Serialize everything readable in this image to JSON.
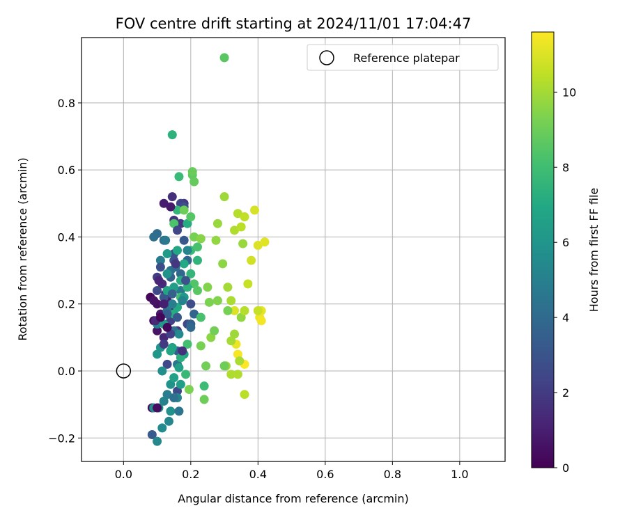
{
  "chart_data": {
    "type": "scatter",
    "title": "FOV centre drift starting at 2024/11/01 17:04:47",
    "xlabel": "Angular distance from reference (arcmin)",
    "ylabel": "Rotation from reference (arcmin)",
    "xlim": [
      -0.125,
      1.135
    ],
    "ylim": [
      -0.27,
      0.995
    ],
    "xticks": [
      0.0,
      0.2,
      0.4,
      0.6,
      0.8,
      1.0
    ],
    "xtick_labels": [
      "0.0",
      "0.2",
      "0.4",
      "0.6",
      "0.8",
      "1.0"
    ],
    "yticks": [
      -0.2,
      0.0,
      0.2,
      0.4,
      0.6,
      0.8
    ],
    "ytick_labels": [
      "−0.2",
      "0.0",
      "0.2",
      "0.4",
      "0.6",
      "0.8"
    ],
    "grid": true,
    "legend": {
      "position": "top-right",
      "entries": [
        {
          "label": "Reference platepar",
          "marker": "open-circle",
          "color": "#000000"
        }
      ]
    },
    "reference_point": {
      "x": 0.0,
      "y": 0.0
    },
    "colormap": "viridis",
    "colorbar": {
      "label": "Hours from first FF file",
      "range": [
        0,
        11.6
      ],
      "ticks": [
        0,
        2,
        4,
        6,
        8,
        10
      ],
      "tick_labels": [
        "0",
        "2",
        "4",
        "6",
        "8",
        "10"
      ]
    },
    "points": [
      {
        "x": 0.08,
        "y": 0.22,
        "c": 0.2
      },
      {
        "x": 0.09,
        "y": 0.15,
        "c": 0.3
      },
      {
        "x": 0.1,
        "y": 0.2,
        "c": 0.5
      },
      {
        "x": 0.085,
        "y": -0.11,
        "c": 0.4
      },
      {
        "x": 0.1,
        "y": 0.12,
        "c": 0.6
      },
      {
        "x": 0.11,
        "y": 0.17,
        "c": 0.8
      },
      {
        "x": 0.12,
        "y": 0.5,
        "c": 0.9
      },
      {
        "x": 0.13,
        "y": 0.21,
        "c": 1.0
      },
      {
        "x": 0.125,
        "y": 0.23,
        "c": 1.1
      },
      {
        "x": 0.14,
        "y": 0.19,
        "c": 1.2
      },
      {
        "x": 0.12,
        "y": 0.1,
        "c": 1.3
      },
      {
        "x": 0.115,
        "y": 0.26,
        "c": 1.4
      },
      {
        "x": 0.145,
        "y": 0.52,
        "c": 1.6
      },
      {
        "x": 0.15,
        "y": 0.45,
        "c": 1.7
      },
      {
        "x": 0.16,
        "y": 0.12,
        "c": 1.8
      },
      {
        "x": 0.17,
        "y": 0.44,
        "c": 1.9
      },
      {
        "x": 0.18,
        "y": 0.5,
        "c": 2.0
      },
      {
        "x": 0.1,
        "y": 0.28,
        "c": 2.1
      },
      {
        "x": 0.14,
        "y": 0.15,
        "c": 2.2
      },
      {
        "x": 0.17,
        "y": 0.5,
        "c": 2.3
      },
      {
        "x": 0.19,
        "y": 0.14,
        "c": 2.4
      },
      {
        "x": 0.13,
        "y": 0.02,
        "c": 2.5
      },
      {
        "x": 0.16,
        "y": -0.06,
        "c": 2.6
      },
      {
        "x": 0.2,
        "y": 0.2,
        "c": 2.7
      },
      {
        "x": 0.18,
        "y": 0.49,
        "c": 2.8
      },
      {
        "x": 0.15,
        "y": 0.33,
        "c": 2.9
      },
      {
        "x": 0.15,
        "y": 0.35,
        "c": 3.0
      },
      {
        "x": 0.12,
        "y": 0.22,
        "c": 3.1
      },
      {
        "x": 0.18,
        "y": 0.39,
        "c": 3.2
      },
      {
        "x": 0.085,
        "y": -0.19,
        "c": 3.3
      },
      {
        "x": 0.16,
        "y": 0.06,
        "c": 3.4
      },
      {
        "x": 0.2,
        "y": 0.14,
        "c": 3.5
      },
      {
        "x": 0.14,
        "y": 0.28,
        "c": 3.6
      },
      {
        "x": 0.21,
        "y": 0.17,
        "c": 3.7
      },
      {
        "x": 0.19,
        "y": 0.33,
        "c": 3.8
      },
      {
        "x": 0.17,
        "y": 0.29,
        "c": 3.9
      },
      {
        "x": 0.1,
        "y": 0.41,
        "c": 4.0
      },
      {
        "x": 0.12,
        "y": 0.39,
        "c": 4.1
      },
      {
        "x": 0.09,
        "y": 0.4,
        "c": 4.2
      },
      {
        "x": 0.15,
        "y": 0.12,
        "c": 4.3
      },
      {
        "x": 0.14,
        "y": 0.3,
        "c": 4.4
      },
      {
        "x": 0.16,
        "y": 0.02,
        "c": 4.5
      },
      {
        "x": 0.13,
        "y": 0.18,
        "c": 4.6
      },
      {
        "x": 0.17,
        "y": 0.24,
        "c": 4.7
      },
      {
        "x": 0.11,
        "y": 0.33,
        "c": 4.8
      },
      {
        "x": 0.13,
        "y": -0.07,
        "c": 4.9
      },
      {
        "x": 0.1,
        "y": 0.14,
        "c": 5.0
      },
      {
        "x": 0.12,
        "y": -0.09,
        "c": 5.1
      },
      {
        "x": 0.16,
        "y": -0.08,
        "c": 5.2
      },
      {
        "x": 0.135,
        "y": -0.15,
        "c": 5.3
      },
      {
        "x": 0.1,
        "y": -0.21,
        "c": 5.4
      },
      {
        "x": 0.115,
        "y": -0.17,
        "c": 5.5
      },
      {
        "x": 0.09,
        "y": -0.11,
        "c": 5.6
      },
      {
        "x": 0.105,
        "y": -0.11,
        "c": 5.7
      },
      {
        "x": 0.14,
        "y": -0.12,
        "c": 5.8
      },
      {
        "x": 0.14,
        "y": -0.04,
        "c": 5.9
      },
      {
        "x": 0.11,
        "y": 0.07,
        "c": 6.0
      },
      {
        "x": 0.1,
        "y": 0.05,
        "c": 6.1
      },
      {
        "x": 0.12,
        "y": 0.14,
        "c": 6.2
      },
      {
        "x": 0.13,
        "y": 0.35,
        "c": 6.3
      },
      {
        "x": 0.15,
        "y": 0.25,
        "c": 6.4
      },
      {
        "x": 0.165,
        "y": 0.01,
        "c": 6.5
      },
      {
        "x": 0.18,
        "y": 0.05,
        "c": 6.6
      },
      {
        "x": 0.145,
        "y": 0.07,
        "c": 6.7
      },
      {
        "x": 0.13,
        "y": 0.24,
        "c": 6.8
      },
      {
        "x": 0.16,
        "y": 0.36,
        "c": 6.9
      },
      {
        "x": 0.18,
        "y": 0.32,
        "c": 7.0
      },
      {
        "x": 0.19,
        "y": 0.44,
        "c": 7.1
      },
      {
        "x": 0.15,
        "y": 0.17,
        "c": 7.2
      },
      {
        "x": 0.17,
        "y": 0.04,
        "c": 7.3
      },
      {
        "x": 0.145,
        "y": 0.705,
        "c": 7.4
      },
      {
        "x": 0.22,
        "y": 0.33,
        "c": 7.5
      },
      {
        "x": 0.16,
        "y": 0.48,
        "c": 7.6
      },
      {
        "x": 0.185,
        "y": -0.01,
        "c": 7.7
      },
      {
        "x": 0.2,
        "y": 0.36,
        "c": 7.8
      },
      {
        "x": 0.165,
        "y": 0.58,
        "c": 7.8
      },
      {
        "x": 0.24,
        "y": -0.045,
        "c": 7.9
      },
      {
        "x": 0.17,
        "y": 0.22,
        "c": 8.0
      },
      {
        "x": 0.19,
        "y": 0.08,
        "c": 8.1
      },
      {
        "x": 0.23,
        "y": 0.16,
        "c": 8.2
      },
      {
        "x": 0.15,
        "y": 0.44,
        "c": 8.3
      },
      {
        "x": 0.21,
        "y": 0.26,
        "c": 8.4
      },
      {
        "x": 0.2,
        "y": 0.46,
        "c": 8.5
      },
      {
        "x": 0.22,
        "y": 0.24,
        "c": 8.6
      },
      {
        "x": 0.205,
        "y": 0.585,
        "c": 8.7
      },
      {
        "x": 0.21,
        "y": 0.565,
        "c": 8.8
      },
      {
        "x": 0.205,
        "y": 0.595,
        "c": 8.9
      },
      {
        "x": 0.24,
        "y": -0.085,
        "c": 9.0
      },
      {
        "x": 0.18,
        "y": 0.48,
        "c": 9.0
      },
      {
        "x": 0.245,
        "y": 0.015,
        "c": 9.1
      },
      {
        "x": 0.21,
        "y": 0.4,
        "c": 9.2
      },
      {
        "x": 0.195,
        "y": -0.055,
        "c": 9.3
      },
      {
        "x": 0.25,
        "y": 0.25,
        "c": 9.4
      },
      {
        "x": 0.23,
        "y": 0.395,
        "c": 9.5
      },
      {
        "x": 0.26,
        "y": 0.1,
        "c": 9.6
      },
      {
        "x": 0.275,
        "y": 0.39,
        "c": 9.7
      },
      {
        "x": 0.28,
        "y": 0.44,
        "c": 9.8
      },
      {
        "x": 0.3,
        "y": 0.52,
        "c": 9.9
      },
      {
        "x": 0.3,
        "y": 0.935,
        "c": 8.6
      },
      {
        "x": 0.31,
        "y": 0.25,
        "c": 10.0
      },
      {
        "x": 0.32,
        "y": 0.21,
        "c": 10.1
      },
      {
        "x": 0.33,
        "y": 0.42,
        "c": 10.2
      },
      {
        "x": 0.34,
        "y": 0.47,
        "c": 10.3
      },
      {
        "x": 0.35,
        "y": 0.43,
        "c": 10.4
      },
      {
        "x": 0.36,
        "y": 0.46,
        "c": 10.5
      },
      {
        "x": 0.37,
        "y": 0.26,
        "c": 10.6
      },
      {
        "x": 0.38,
        "y": 0.33,
        "c": 10.8
      },
      {
        "x": 0.39,
        "y": 0.48,
        "c": 10.9
      },
      {
        "x": 0.4,
        "y": 0.375,
        "c": 11.0
      },
      {
        "x": 0.42,
        "y": 0.385,
        "c": 11.1
      },
      {
        "x": 0.41,
        "y": 0.18,
        "c": 11.2
      },
      {
        "x": 0.405,
        "y": 0.16,
        "c": 11.3
      },
      {
        "x": 0.41,
        "y": 0.15,
        "c": 11.4
      },
      {
        "x": 0.34,
        "y": 0.05,
        "c": 11.5
      },
      {
        "x": 0.36,
        "y": 0.02,
        "c": 11.6
      },
      {
        "x": 0.335,
        "y": 0.08,
        "c": 11.3
      },
      {
        "x": 0.33,
        "y": 0.18,
        "c": 11.0
      },
      {
        "x": 0.36,
        "y": -0.07,
        "c": 10.4
      },
      {
        "x": 0.32,
        "y": -0.01,
        "c": 10.2
      },
      {
        "x": 0.305,
        "y": 0.015,
        "c": 9.9
      },
      {
        "x": 0.295,
        "y": 0.32,
        "c": 9.6
      },
      {
        "x": 0.35,
        "y": 0.16,
        "c": 9.7
      },
      {
        "x": 0.355,
        "y": 0.38,
        "c": 9.8
      },
      {
        "x": 0.33,
        "y": 0.11,
        "c": 9.9
      },
      {
        "x": 0.32,
        "y": 0.09,
        "c": 10.0
      },
      {
        "x": 0.345,
        "y": 0.03,
        "c": 10.1
      },
      {
        "x": 0.36,
        "y": 0.18,
        "c": 10.3
      },
      {
        "x": 0.4,
        "y": 0.18,
        "c": 10.6
      },
      {
        "x": 0.34,
        "y": -0.01,
        "c": 10.2
      },
      {
        "x": 0.28,
        "y": 0.21,
        "c": 9.4
      },
      {
        "x": 0.255,
        "y": 0.205,
        "c": 9.3
      },
      {
        "x": 0.23,
        "y": 0.075,
        "c": 9.2
      },
      {
        "x": 0.27,
        "y": 0.12,
        "c": 9.1
      },
      {
        "x": 0.3,
        "y": 0.015,
        "c": 9.0
      },
      {
        "x": 0.31,
        "y": 0.18,
        "c": 9.2
      },
      {
        "x": 0.22,
        "y": 0.37,
        "c": 8.2
      },
      {
        "x": 0.2,
        "y": 0.29,
        "c": 7.6
      },
      {
        "x": 0.19,
        "y": 0.25,
        "c": 7.4
      },
      {
        "x": 0.17,
        "y": 0.27,
        "c": 7.2
      },
      {
        "x": 0.16,
        "y": 0.19,
        "c": 7.0
      },
      {
        "x": 0.14,
        "y": 0.06,
        "c": 6.8
      },
      {
        "x": 0.15,
        "y": -0.02,
        "c": 6.6
      },
      {
        "x": 0.17,
        "y": -0.04,
        "c": 6.4
      },
      {
        "x": 0.18,
        "y": 0.22,
        "c": 6.2
      },
      {
        "x": 0.13,
        "y": 0.29,
        "c": 5.9
      },
      {
        "x": 0.115,
        "y": 0.0,
        "c": 5.7
      },
      {
        "x": 0.165,
        "y": 0.11,
        "c": 5.5
      },
      {
        "x": 0.19,
        "y": 0.36,
        "c": 5.3
      },
      {
        "x": 0.175,
        "y": 0.21,
        "c": 5.1
      },
      {
        "x": 0.145,
        "y": 0.2,
        "c": 4.9
      },
      {
        "x": 0.125,
        "y": 0.39,
        "c": 4.7
      },
      {
        "x": 0.165,
        "y": -0.12,
        "c": 4.5
      },
      {
        "x": 0.15,
        "y": -0.08,
        "c": 4.3
      },
      {
        "x": 0.155,
        "y": 0.31,
        "c": 4.1
      },
      {
        "x": 0.2,
        "y": 0.13,
        "c": 3.9
      },
      {
        "x": 0.145,
        "y": 0.23,
        "c": 3.6
      },
      {
        "x": 0.13,
        "y": 0.17,
        "c": 3.4
      },
      {
        "x": 0.16,
        "y": 0.16,
        "c": 3.2
      },
      {
        "x": 0.185,
        "y": 0.27,
        "c": 3.0
      },
      {
        "x": 0.11,
        "y": 0.31,
        "c": 2.8
      },
      {
        "x": 0.1,
        "y": 0.24,
        "c": 2.6
      },
      {
        "x": 0.16,
        "y": 0.42,
        "c": 2.4
      },
      {
        "x": 0.14,
        "y": 0.11,
        "c": 2.2
      },
      {
        "x": 0.12,
        "y": 0.08,
        "c": 2.0
      },
      {
        "x": 0.155,
        "y": 0.32,
        "c": 1.8
      },
      {
        "x": 0.175,
        "y": 0.06,
        "c": 1.6
      },
      {
        "x": 0.095,
        "y": 0.15,
        "c": 1.4
      },
      {
        "x": 0.105,
        "y": 0.27,
        "c": 1.2
      },
      {
        "x": 0.12,
        "y": 0.2,
        "c": 1.0
      },
      {
        "x": 0.14,
        "y": 0.49,
        "c": 0.8
      },
      {
        "x": 0.09,
        "y": 0.21,
        "c": 0.6
      },
      {
        "x": 0.1,
        "y": -0.11,
        "c": 0.4
      },
      {
        "x": 0.13,
        "y": 0.13,
        "c": 0.2
      },
      {
        "x": 0.11,
        "y": 0.16,
        "c": 0.1
      }
    ]
  }
}
